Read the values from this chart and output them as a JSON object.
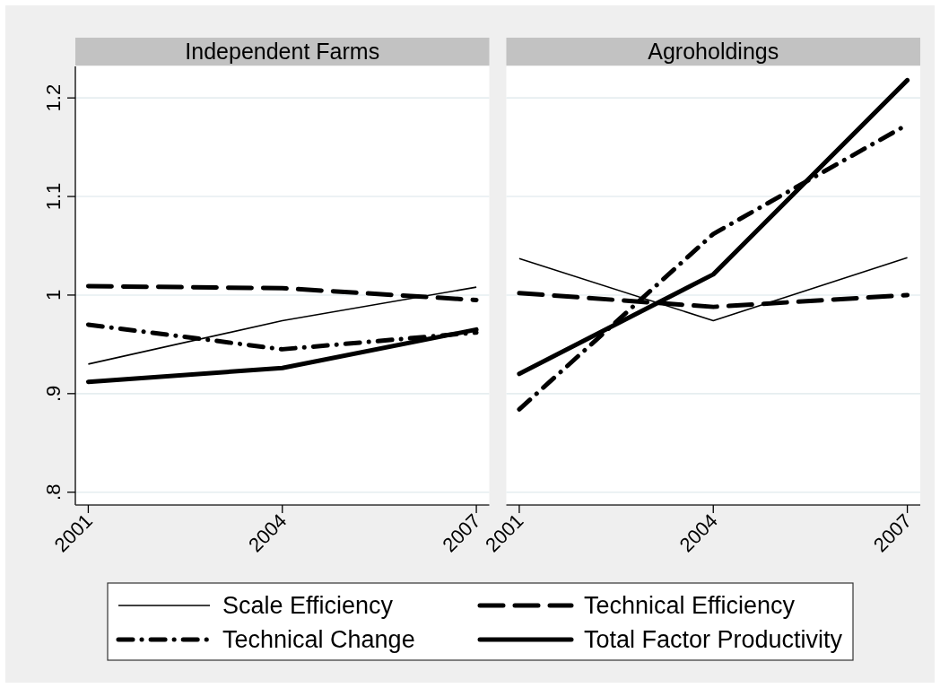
{
  "chart_data": [
    {
      "type": "line",
      "title": "Independent Farms",
      "x": [
        2001,
        2004,
        2007
      ],
      "xlim": [
        2000.8,
        2007.2
      ],
      "xticks": [
        2001,
        2004,
        2007
      ],
      "ylim": [
        0.787,
        1.232
      ],
      "yticks": [
        {
          "value": 0.8,
          "label": ".8"
        },
        {
          "value": 0.9,
          "label": ".9"
        },
        1,
        1.1,
        1.2
      ],
      "grid": "y",
      "legend": "bottom",
      "series": [
        {
          "name": "Scale Efficiency",
          "color": "#000000",
          "line_style": "solid",
          "values": [
            0.93,
            0.974,
            1.008
          ]
        },
        {
          "name": "Technical Efficiency",
          "color": "#000000",
          "line_style": "dashed",
          "values": [
            1.009,
            1.007,
            0.995
          ]
        },
        {
          "name": "Technical Change",
          "color": "#000000",
          "line_style": "dashdot",
          "values": [
            0.97,
            0.945,
            0.962
          ]
        },
        {
          "name": "Total Factor Productivity",
          "color": "#000000",
          "line_style": "solid",
          "values": [
            0.912,
            0.926,
            0.965
          ]
        }
      ]
    },
    {
      "type": "line",
      "title": "Agroholdings",
      "x": [
        2001,
        2004,
        2007
      ],
      "xlim": [
        2000.8,
        2007.2
      ],
      "xticks": [
        2001,
        2004,
        2007
      ],
      "ylim": [
        0.787,
        1.232
      ],
      "yticks": [
        0.8,
        0.9,
        1,
        1.1,
        1.2
      ],
      "grid": "y",
      "tick_labels": "x",
      "series": [
        {
          "color": "#000000",
          "line_style": "solid",
          "values": [
            1.037,
            0.974,
            1.038
          ]
        },
        {
          "color": "#000000",
          "line_style": "dashed",
          "values": [
            1.002,
            0.988,
            1.0
          ]
        },
        {
          "color": "#000000",
          "line_style": "dashdot",
          "values": [
            0.884,
            1.062,
            1.173
          ]
        },
        {
          "color": "#000000",
          "line_style": "solid",
          "values": [
            0.92,
            1.021,
            1.218
          ]
        }
      ]
    }
  ]
}
